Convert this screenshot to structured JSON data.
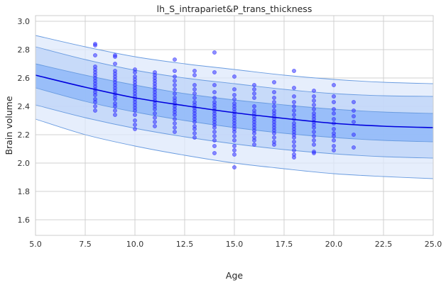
{
  "chart_data": {
    "type": "scatter",
    "title": "lh_S_intrapariet&P_trans_thickness",
    "xlabel": "Age",
    "ylabel": "Brain volume",
    "xlim": [
      5.0,
      25.0
    ],
    "ylim": [
      1.49,
      3.04
    ],
    "xticks": [
      5.0,
      7.5,
      10.0,
      12.5,
      15.0,
      17.5,
      20.0,
      22.5,
      25.0
    ],
    "xtick_labels": [
      "5.0",
      "7.5",
      "10.0",
      "12.5",
      "15.0",
      "17.5",
      "20.0",
      "22.5",
      "25.0"
    ],
    "yticks": [
      1.6,
      1.8,
      2.0,
      2.2,
      2.4,
      2.6,
      2.8,
      3.0
    ],
    "ytick_labels": [
      "1.6",
      "1.8",
      "2.0",
      "2.2",
      "2.4",
      "2.6",
      "2.8",
      "3.0"
    ],
    "grid": true,
    "colors": {
      "line": "#0000dd",
      "points": "#3333ff",
      "band_inner": "#8ab4f8",
      "band_middle": "#bcd3f8",
      "band_outer": "#dde8fb",
      "band_edge": "#6a9ce0",
      "grid": "#d0d0d0",
      "spine": "#cccccc"
    },
    "mean_curve": {
      "x": [
        5,
        7.5,
        10,
        12.5,
        15,
        17.5,
        20,
        22.5,
        25
      ],
      "y": [
        2.62,
        2.535,
        2.46,
        2.405,
        2.355,
        2.315,
        2.28,
        2.26,
        2.25
      ]
    },
    "bands": [
      {
        "name": "outer",
        "x": [
          5,
          7.5,
          10,
          12.5,
          15,
          17.5,
          20,
          22.5,
          25
        ],
        "lower": [
          2.31,
          2.2,
          2.12,
          2.055,
          2.0,
          1.96,
          1.925,
          1.905,
          1.89
        ],
        "upper": [
          2.9,
          2.82,
          2.75,
          2.7,
          2.66,
          2.62,
          2.59,
          2.57,
          2.56
        ]
      },
      {
        "name": "middle",
        "x": [
          5,
          7.5,
          10,
          12.5,
          15,
          17.5,
          20,
          22.5,
          25
        ],
        "lower": [
          2.41,
          2.32,
          2.245,
          2.185,
          2.135,
          2.095,
          2.065,
          2.045,
          2.035
        ],
        "upper": [
          2.82,
          2.73,
          2.655,
          2.6,
          2.56,
          2.52,
          2.49,
          2.475,
          2.47
        ]
      },
      {
        "name": "inner",
        "x": [
          5,
          7.5,
          10,
          12.5,
          15,
          17.5,
          20,
          22.5,
          25
        ],
        "lower": [
          2.53,
          2.435,
          2.36,
          2.3,
          2.25,
          2.21,
          2.18,
          2.16,
          2.15
        ],
        "upper": [
          2.7,
          2.62,
          2.55,
          2.49,
          2.445,
          2.41,
          2.38,
          2.36,
          2.35
        ]
      }
    ],
    "points": [
      [
        8,
        2.84
      ],
      [
        8,
        2.83
      ],
      [
        8,
        2.76
      ],
      [
        8,
        2.68
      ],
      [
        8,
        2.66
      ],
      [
        8,
        2.64
      ],
      [
        8,
        2.62
      ],
      [
        8,
        2.6
      ],
      [
        8,
        2.58
      ],
      [
        8,
        2.56
      ],
      [
        8,
        2.54
      ],
      [
        8,
        2.52
      ],
      [
        8,
        2.5
      ],
      [
        8,
        2.48
      ],
      [
        8,
        2.45
      ],
      [
        8,
        2.43
      ],
      [
        8,
        2.4
      ],
      [
        8,
        2.37
      ],
      [
        9,
        2.76
      ],
      [
        9,
        2.75
      ],
      [
        9,
        2.7
      ],
      [
        9,
        2.65
      ],
      [
        9,
        2.63
      ],
      [
        9,
        2.61
      ],
      [
        9,
        2.59
      ],
      [
        9,
        2.57
      ],
      [
        9,
        2.55
      ],
      [
        9,
        2.53
      ],
      [
        9,
        2.51
      ],
      [
        9,
        2.49
      ],
      [
        9,
        2.47
      ],
      [
        9,
        2.45
      ],
      [
        9,
        2.42
      ],
      [
        9,
        2.4
      ],
      [
        9,
        2.37
      ],
      [
        9,
        2.34
      ],
      [
        10,
        2.66
      ],
      [
        10,
        2.64
      ],
      [
        10,
        2.61
      ],
      [
        10,
        2.59
      ],
      [
        10,
        2.57
      ],
      [
        10,
        2.55
      ],
      [
        10,
        2.53
      ],
      [
        10,
        2.51
      ],
      [
        10,
        2.49
      ],
      [
        10,
        2.47
      ],
      [
        10,
        2.45
      ],
      [
        10,
        2.43
      ],
      [
        10,
        2.41
      ],
      [
        10,
        2.39
      ],
      [
        10,
        2.37
      ],
      [
        10,
        2.34
      ],
      [
        10,
        2.3
      ],
      [
        10,
        2.27
      ],
      [
        10,
        2.24
      ],
      [
        11,
        2.64
      ],
      [
        11,
        2.62
      ],
      [
        11,
        2.6
      ],
      [
        11,
        2.58
      ],
      [
        11,
        2.56
      ],
      [
        11,
        2.54
      ],
      [
        11,
        2.52
      ],
      [
        11,
        2.5
      ],
      [
        11,
        2.48
      ],
      [
        11,
        2.46
      ],
      [
        11,
        2.44
      ],
      [
        11,
        2.42
      ],
      [
        11,
        2.4
      ],
      [
        11,
        2.38
      ],
      [
        11,
        2.35
      ],
      [
        11,
        2.32
      ],
      [
        11,
        2.29
      ],
      [
        11,
        2.26
      ],
      [
        12,
        2.73
      ],
      [
        12,
        2.65
      ],
      [
        12,
        2.61
      ],
      [
        12,
        2.58
      ],
      [
        12,
        2.55
      ],
      [
        12,
        2.52
      ],
      [
        12,
        2.49
      ],
      [
        12,
        2.46
      ],
      [
        12,
        2.44
      ],
      [
        12,
        2.42
      ],
      [
        12,
        2.4
      ],
      [
        12,
        2.38
      ],
      [
        12,
        2.36
      ],
      [
        12,
        2.34
      ],
      [
        12,
        2.31
      ],
      [
        12,
        2.28
      ],
      [
        12,
        2.25
      ],
      [
        12,
        2.22
      ],
      [
        13,
        2.65
      ],
      [
        13,
        2.62
      ],
      [
        13,
        2.55
      ],
      [
        13,
        2.52
      ],
      [
        13,
        2.49
      ],
      [
        13,
        2.46
      ],
      [
        13,
        2.43
      ],
      [
        13,
        2.41
      ],
      [
        13,
        2.39
      ],
      [
        13,
        2.37
      ],
      [
        13,
        2.35
      ],
      [
        13,
        2.33
      ],
      [
        13,
        2.31
      ],
      [
        13,
        2.29
      ],
      [
        13,
        2.26
      ],
      [
        13,
        2.24
      ],
      [
        13,
        2.21
      ],
      [
        13,
        2.18
      ],
      [
        14,
        2.78
      ],
      [
        14,
        2.64
      ],
      [
        14,
        2.55
      ],
      [
        14,
        2.5
      ],
      [
        14,
        2.46
      ],
      [
        14,
        2.43
      ],
      [
        14,
        2.41
      ],
      [
        14,
        2.39
      ],
      [
        14,
        2.37
      ],
      [
        14,
        2.35
      ],
      [
        14,
        2.33
      ],
      [
        14,
        2.31
      ],
      [
        14,
        2.29
      ],
      [
        14,
        2.27
      ],
      [
        14,
        2.25
      ],
      [
        14,
        2.22
      ],
      [
        14,
        2.19
      ],
      [
        14,
        2.16
      ],
      [
        14,
        2.12
      ],
      [
        14,
        2.07
      ],
      [
        15,
        2.61
      ],
      [
        15,
        2.52
      ],
      [
        15,
        2.48
      ],
      [
        15,
        2.45
      ],
      [
        15,
        2.42
      ],
      [
        15,
        2.4
      ],
      [
        15,
        2.38
      ],
      [
        15,
        2.36
      ],
      [
        15,
        2.34
      ],
      [
        15,
        2.32
      ],
      [
        15,
        2.3
      ],
      [
        15,
        2.28
      ],
      [
        15,
        2.26
      ],
      [
        15,
        2.24
      ],
      [
        15,
        2.22
      ],
      [
        15,
        2.19
      ],
      [
        15,
        2.16
      ],
      [
        15,
        2.12
      ],
      [
        15,
        2.09
      ],
      [
        15,
        2.06
      ],
      [
        15,
        1.97
      ],
      [
        16,
        2.55
      ],
      [
        16,
        2.52
      ],
      [
        16,
        2.49
      ],
      [
        16,
        2.46
      ],
      [
        16,
        2.4
      ],
      [
        16,
        2.37
      ],
      [
        16,
        2.35
      ],
      [
        16,
        2.33
      ],
      [
        16,
        2.31
      ],
      [
        16,
        2.29
      ],
      [
        16,
        2.27
      ],
      [
        16,
        2.25
      ],
      [
        16,
        2.23
      ],
      [
        16,
        2.21
      ],
      [
        16,
        2.18
      ],
      [
        16,
        2.16
      ],
      [
        16,
        2.13
      ],
      [
        17,
        2.57
      ],
      [
        17,
        2.5
      ],
      [
        17,
        2.46
      ],
      [
        17,
        2.43
      ],
      [
        17,
        2.4
      ],
      [
        17,
        2.37
      ],
      [
        17,
        2.35
      ],
      [
        17,
        2.33
      ],
      [
        17,
        2.31
      ],
      [
        17,
        2.29
      ],
      [
        17,
        2.27
      ],
      [
        17,
        2.25
      ],
      [
        17,
        2.23
      ],
      [
        17,
        2.21
      ],
      [
        17,
        2.18
      ],
      [
        17,
        2.15
      ],
      [
        17,
        2.13
      ],
      [
        18,
        2.65
      ],
      [
        18,
        2.53
      ],
      [
        18,
        2.47
      ],
      [
        18,
        2.43
      ],
      [
        18,
        2.4
      ],
      [
        18,
        2.37
      ],
      [
        18,
        2.34
      ],
      [
        18,
        2.31
      ],
      [
        18,
        2.28
      ],
      [
        18,
        2.26
      ],
      [
        18,
        2.24
      ],
      [
        18,
        2.22
      ],
      [
        18,
        2.2
      ],
      [
        18,
        2.18
      ],
      [
        18,
        2.15
      ],
      [
        18,
        2.12
      ],
      [
        18,
        2.09
      ],
      [
        18,
        2.06
      ],
      [
        18,
        2.04
      ],
      [
        19,
        2.51
      ],
      [
        19,
        2.47
      ],
      [
        19,
        2.44
      ],
      [
        19,
        2.41
      ],
      [
        19,
        2.38
      ],
      [
        19,
        2.35
      ],
      [
        19,
        2.33
      ],
      [
        19,
        2.31
      ],
      [
        19,
        2.29
      ],
      [
        19,
        2.27
      ],
      [
        19,
        2.25
      ],
      [
        19,
        2.22
      ],
      [
        19,
        2.19
      ],
      [
        19,
        2.16
      ],
      [
        19,
        2.13
      ],
      [
        19,
        2.08
      ],
      [
        19,
        2.07
      ],
      [
        20,
        2.55
      ],
      [
        20,
        2.47
      ],
      [
        20,
        2.43
      ],
      [
        20,
        2.38
      ],
      [
        20,
        2.35
      ],
      [
        20,
        2.31
      ],
      [
        20,
        2.28
      ],
      [
        20,
        2.24
      ],
      [
        20,
        2.21
      ],
      [
        20,
        2.19
      ],
      [
        20,
        2.16
      ],
      [
        20,
        2.12
      ],
      [
        20,
        2.09
      ],
      [
        21,
        2.43
      ],
      [
        21,
        2.37
      ],
      [
        21,
        2.33
      ],
      [
        21,
        2.29
      ],
      [
        21,
        2.2
      ],
      [
        21,
        2.11
      ]
    ]
  }
}
